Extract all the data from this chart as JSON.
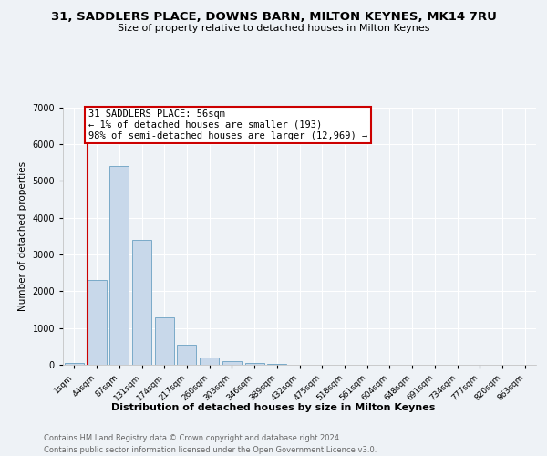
{
  "title_line1": "31, SADDLERS PLACE, DOWNS BARN, MILTON KEYNES, MK14 7RU",
  "title_line2": "Size of property relative to detached houses in Milton Keynes",
  "xlabel": "Distribution of detached houses by size in Milton Keynes",
  "ylabel": "Number of detached properties",
  "categories": [
    "1sqm",
    "44sqm",
    "87sqm",
    "131sqm",
    "174sqm",
    "217sqm",
    "260sqm",
    "303sqm",
    "346sqm",
    "389sqm",
    "432sqm",
    "475sqm",
    "518sqm",
    "561sqm",
    "604sqm",
    "648sqm",
    "691sqm",
    "734sqm",
    "777sqm",
    "820sqm",
    "863sqm"
  ],
  "values": [
    50,
    2300,
    5400,
    3400,
    1300,
    550,
    200,
    100,
    60,
    30,
    10,
    5,
    3,
    2,
    1,
    1,
    0,
    0,
    0,
    0,
    0
  ],
  "bar_color": "#c8d8ea",
  "bar_edge_color": "#7aaac8",
  "annotation_text_line1": "31 SADDLERS PLACE: 56sqm",
  "annotation_text_line2": "← 1% of detached houses are smaller (193)",
  "annotation_text_line3": "98% of semi-detached houses are larger (12,969) →",
  "annotation_box_color": "#cc0000",
  "vline_color": "#cc0000",
  "ylim": [
    0,
    7000
  ],
  "footer_line1": "Contains HM Land Registry data © Crown copyright and database right 2024.",
  "footer_line2": "Contains public sector information licensed under the Open Government Licence v3.0.",
  "background_color": "#eef2f6",
  "plot_background": "#eef2f6",
  "grid_color": "#ffffff",
  "title_fontsize": 9.5,
  "subtitle_fontsize": 8,
  "ylabel_fontsize": 7.5,
  "tick_fontsize": 6.5,
  "xlabel_fontsize": 8,
  "footer_fontsize": 6,
  "annotation_fontsize": 7.5
}
